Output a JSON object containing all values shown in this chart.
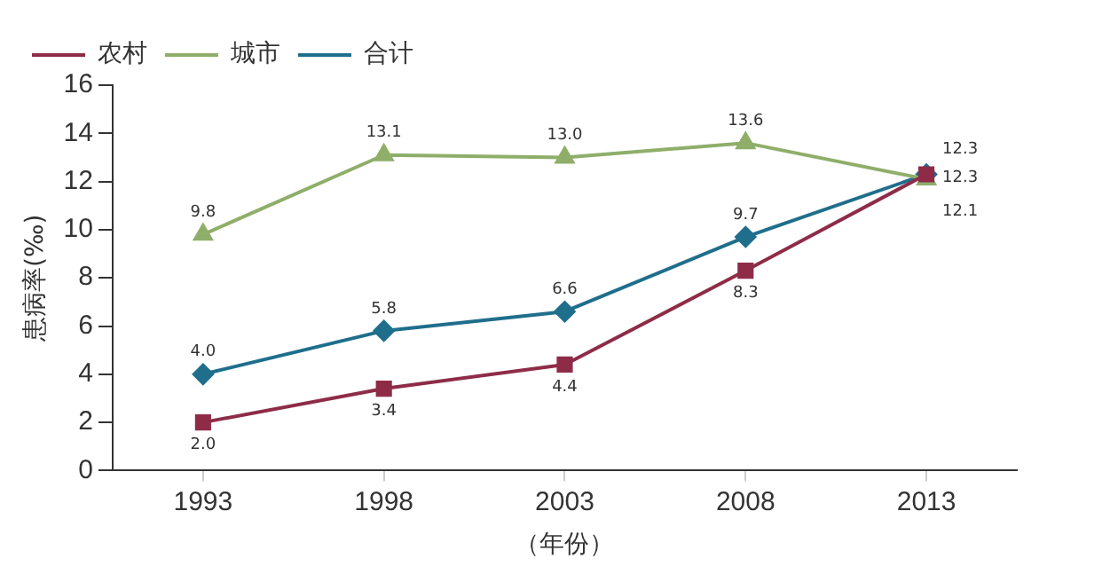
{
  "chart_data": {
    "type": "line",
    "xlabel": "（年份）",
    "ylabel": "患病率(‰)",
    "categories": [
      "1993",
      "1998",
      "2003",
      "2008",
      "2013"
    ],
    "series": [
      {
        "name": "农村",
        "color": "#8e2c48",
        "marker": "square",
        "values": [
          2.0,
          3.4,
          4.4,
          8.3,
          12.3
        ],
        "value_labels": [
          "2.0",
          "3.4",
          "4.4",
          "8.3",
          "12.3"
        ]
      },
      {
        "name": "城市",
        "color": "#8fae6a",
        "marker": "triangle",
        "values": [
          9.8,
          13.1,
          13.0,
          13.6,
          12.1
        ],
        "value_labels": [
          "9.8",
          "13.1",
          "13.0",
          "13.6",
          "12.1"
        ]
      },
      {
        "name": "合计",
        "color": "#1f6e8c",
        "marker": "diamond",
        "values": [
          4.0,
          5.8,
          6.6,
          9.7,
          12.3
        ],
        "value_labels": [
          "4.0",
          "5.8",
          "6.6",
          "9.7",
          "12.3"
        ]
      }
    ],
    "ylim": [
      0,
      16
    ],
    "yticks": [
      0,
      2,
      4,
      6,
      8,
      10,
      12,
      14,
      16
    ],
    "grid": false,
    "legend": "top left"
  }
}
